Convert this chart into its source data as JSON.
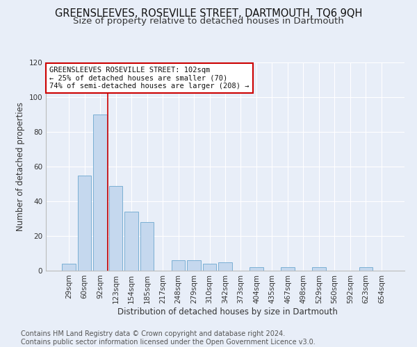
{
  "title": "GREENSLEEVES, ROSEVILLE STREET, DARTMOUTH, TQ6 9QH",
  "subtitle": "Size of property relative to detached houses in Dartmouth",
  "xlabel": "Distribution of detached houses by size in Dartmouth",
  "ylabel": "Number of detached properties",
  "categories": [
    "29sqm",
    "60sqm",
    "92sqm",
    "123sqm",
    "154sqm",
    "185sqm",
    "217sqm",
    "248sqm",
    "279sqm",
    "310sqm",
    "342sqm",
    "373sqm",
    "404sqm",
    "435sqm",
    "467sqm",
    "498sqm",
    "529sqm",
    "560sqm",
    "592sqm",
    "623sqm",
    "654sqm"
  ],
  "values": [
    4,
    55,
    90,
    49,
    34,
    28,
    0,
    6,
    6,
    4,
    5,
    0,
    2,
    0,
    2,
    0,
    2,
    0,
    0,
    2,
    0
  ],
  "bar_color": "#c5d8ee",
  "bar_edge_color": "#7aafd4",
  "vline_color": "#cc0000",
  "vline_x_index": 2.5,
  "ylim": [
    0,
    120
  ],
  "yticks": [
    0,
    20,
    40,
    60,
    80,
    100,
    120
  ],
  "annotation_line1": "GREENSLEEVES ROSEVILLE STREET: 102sqm",
  "annotation_line2": "← 25% of detached houses are smaller (70)",
  "annotation_line3": "74% of semi-detached houses are larger (208) →",
  "annotation_box_color": "#cc0000",
  "footer_line1": "Contains HM Land Registry data © Crown copyright and database right 2024.",
  "footer_line2": "Contains public sector information licensed under the Open Government Licence v3.0.",
  "bg_color": "#e8eef8",
  "plot_bg_color": "#e8eef8",
  "title_fontsize": 10.5,
  "subtitle_fontsize": 9.5,
  "axis_label_fontsize": 8.5,
  "tick_fontsize": 7.5,
  "annotation_fontsize": 7.5,
  "footer_fontsize": 7.0
}
